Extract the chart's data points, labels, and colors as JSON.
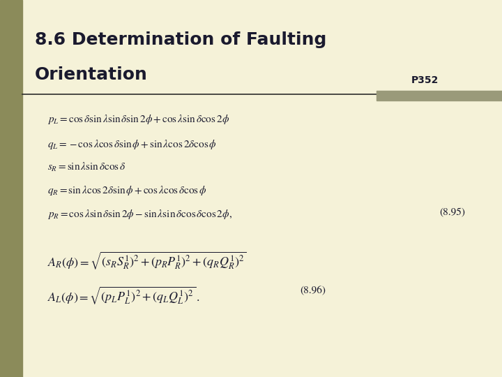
{
  "title_line1": "8.6 Determination of Faulting",
  "title_line2": "Orientation",
  "page_ref": "P352",
  "bg_color": "#f5f2d8",
  "left_bar_color": "#8b8b5a",
  "right_bar_color": "#9a9a7a",
  "title_color": "#1a1a2e",
  "line_color": "#2c2c2c",
  "eq_color": "#1a1a2e",
  "formulas": [
    "$p_L = \\cos\\delta\\sin\\lambda\\sin\\delta\\sin 2\\phi + \\cos\\lambda\\sin\\delta\\cos 2\\phi$",
    "$q_L = -\\cos\\lambda\\cos\\delta\\sin\\phi + \\sin\\lambda\\cos 2\\delta\\cos\\phi$",
    "$s_R = \\sin\\lambda\\sin\\delta\\cos\\delta$",
    "$q_R = \\sin\\lambda\\cos 2\\delta\\sin\\phi + \\cos\\lambda\\cos\\delta\\cos\\phi$",
    "$p_R = \\cos\\lambda\\sin\\delta\\sin 2\\phi - \\sin\\lambda\\sin\\delta\\cos\\delta\\cos 2\\phi,$"
  ],
  "eq_number_1": "(8.95)",
  "formula_AR": "$A_R(\\phi)= \\sqrt{(s_R S_R^{1})^2 + (p_R P_R^{1})^2 + (q_R Q_R^{1})^2}$",
  "formula_AL": "$A_L(\\phi)= \\sqrt{(p_L P_L^{1})^2 + (q_L Q_L^{1})^2}\\,.$",
  "eq_number_2": "(8.96)",
  "title_fs": 18,
  "formula_fs": 11,
  "eqnum_fs": 11
}
